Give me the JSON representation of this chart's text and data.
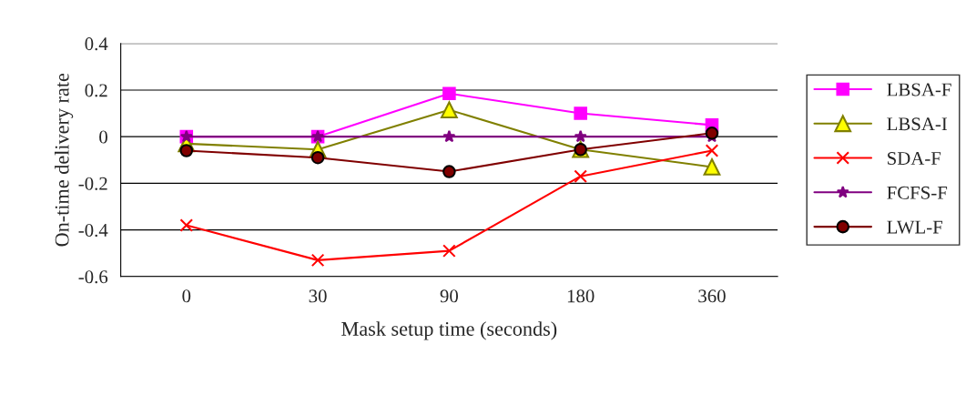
{
  "chart_data": {
    "type": "line",
    "xlabel": "Mask setup time (seconds)",
    "ylabel": "On-time delivery rate",
    "categories": [
      "0",
      "30",
      "90",
      "180",
      "360"
    ],
    "series": [
      {
        "name": "LBSA-F",
        "color": "#ff00ff",
        "marker": "square",
        "values": [
          0,
          0,
          0.185,
          0.1,
          0.05
        ]
      },
      {
        "name": "LBSA-I",
        "color": "#808000",
        "marker": "triangle",
        "values": [
          -0.03,
          -0.055,
          0.115,
          -0.055,
          -0.13
        ]
      },
      {
        "name": "SDA-F",
        "color": "#ff0000",
        "marker": "cross",
        "values": [
          -0.38,
          -0.53,
          -0.49,
          -0.17,
          -0.06
        ]
      },
      {
        "name": "FCFS-F",
        "color": "#800080",
        "marker": "star",
        "values": [
          0,
          0,
          0,
          0,
          0
        ]
      },
      {
        "name": "LWL-F",
        "color": "#800000",
        "marker": "circle",
        "values": [
          -0.06,
          -0.09,
          -0.15,
          -0.055,
          0.015
        ]
      }
    ],
    "ylim": [
      -0.6,
      0.4
    ],
    "yticks": [
      -0.6,
      -0.4,
      -0.2,
      0,
      0.2,
      0.4
    ],
    "grid": "y",
    "legend": "right",
    "line_style": "solid"
  }
}
